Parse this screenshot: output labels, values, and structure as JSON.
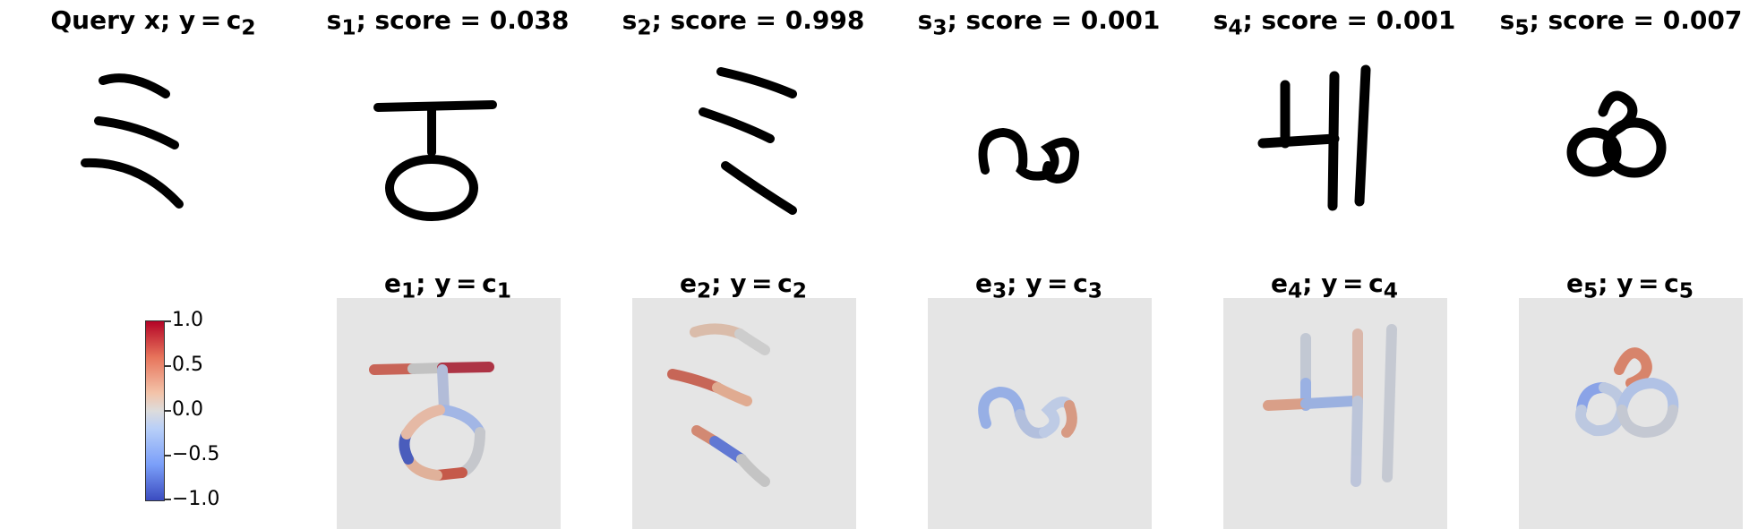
{
  "top_titles": {
    "q": {
      "a": "Query x; y = c",
      "b": "2",
      "c": ""
    },
    "s1": {
      "a": "s",
      "b": "1",
      "c": "; score = 0.038"
    },
    "s2": {
      "a": "s",
      "b": "2",
      "c": "; score = 0.998"
    },
    "s3": {
      "a": "s",
      "b": "3",
      "c": "; score = 0.001"
    },
    "s4": {
      "a": "s",
      "b": "4",
      "c": "; score = 0.001"
    },
    "s5": {
      "a": "s",
      "b": "5",
      "c": "; score = 0.007"
    }
  },
  "sub_titles": {
    "e1": {
      "a": "e",
      "b": "1",
      "c": "; y = c",
      "d": "1"
    },
    "e2": {
      "a": "e",
      "b": "2",
      "c": "; y = c",
      "d": "2"
    },
    "e3": {
      "a": "e",
      "b": "3",
      "c": "; y = c",
      "d": "3"
    },
    "e4": {
      "a": "e",
      "b": "4",
      "c": "; y = c",
      "d": "4"
    },
    "e5": {
      "a": "e",
      "b": "5",
      "c": "; y = c",
      "d": "5"
    }
  },
  "colorbar": {
    "ticks": [
      "1.0",
      "0.5",
      "0.0",
      "−0.5",
      "−1.0"
    ],
    "colors": {
      "high": "#b40426",
      "mid": "#dddcdc",
      "low": "#3b4cc0"
    }
  }
}
